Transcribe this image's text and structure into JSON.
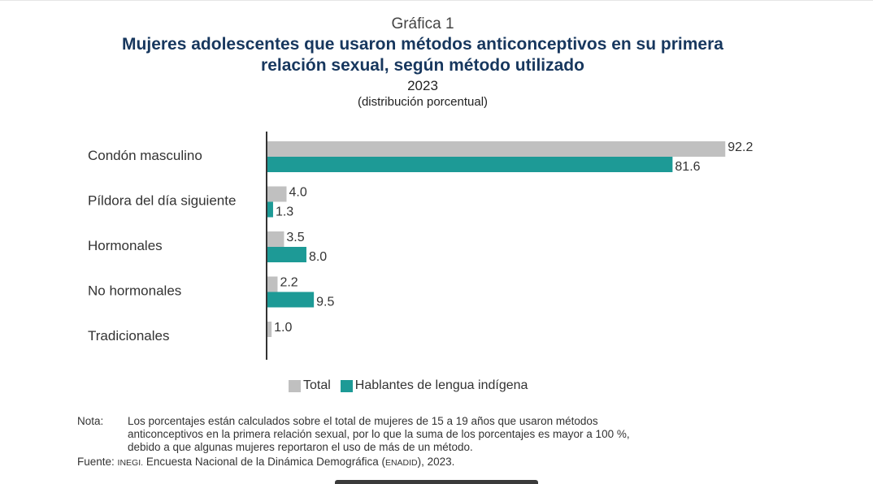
{
  "header": {
    "label": "Gráfica 1",
    "title_line1": "Mujeres adolescentes que usaron métodos anticonceptivos en su primera",
    "title_line2": "relación sexual, según método utilizado",
    "year": "2023",
    "subtitle": "(distribución porcentual)"
  },
  "colors": {
    "total": "#c0c0c0",
    "indigena": "#1d9a96",
    "title": "#17375e"
  },
  "chart_data": {
    "type": "bar",
    "orientation": "horizontal",
    "categories": [
      "Condón masculino",
      "Píldora del día siguiente",
      "Hormonales",
      "No hormonales",
      "Tradicionales"
    ],
    "series": [
      {
        "name": "Total",
        "values": [
          92.2,
          4.0,
          3.5,
          2.2,
          1.0
        ],
        "labels": [
          "92.2",
          "4.0",
          "3.5",
          "2.2",
          "1.0"
        ]
      },
      {
        "name": "Hablantes de lengua indígena",
        "values": [
          81.6,
          1.3,
          8.0,
          9.5,
          null
        ],
        "labels": [
          "81.6",
          "1.3",
          "8.0",
          "9.5",
          ""
        ]
      }
    ],
    "xlim": [
      0,
      100
    ],
    "grid": false,
    "legend_position": "bottom"
  },
  "legend": {
    "total_label": "Total",
    "indigena_label": "Hablantes de lengua indígena"
  },
  "notes": {
    "nota_label": "Nota:",
    "nota_line1": "Los porcentajes están calculados sobre el total de mujeres de 15 a 19 años que usaron métodos",
    "nota_line2": "anticonceptivos en la primera relación sexual, por lo que la suma de los porcentajes es mayor a 100 %,",
    "nota_line3": "debido a que algunas mujeres reportaron el uso de más de un método.",
    "fuente_label": "Fuente:",
    "fuente_org": "INEGI.",
    "fuente_pre": " Encuesta Nacional de la Dinámica Demográfica (",
    "fuente_abbr": "ENADID",
    "fuente_post": "), 2023."
  }
}
